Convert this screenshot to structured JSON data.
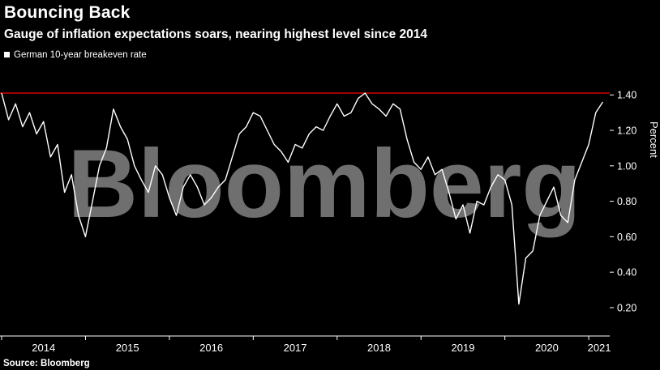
{
  "header": {
    "title": "Bouncing Back",
    "subtitle": "Gauge of inflation expectations soars, nearing highest level since 2014"
  },
  "legend": {
    "label": "German 10-year breakeven rate",
    "marker_color": "#ffffff"
  },
  "watermark": "Bloomberg",
  "source": "Source: Bloomberg",
  "colors": {
    "background": "#000000",
    "line": "#ffffff",
    "reference_line": "#ff0000",
    "watermark": "#6f6f6f",
    "axis": "#ffffff",
    "text": "#ffffff"
  },
  "chart_data": {
    "type": "line",
    "title": "Bouncing Back",
    "ylabel": "Percent",
    "xlabel": "",
    "grid": false,
    "legend_position": "top-left",
    "xlim": [
      2014.0,
      2021.25
    ],
    "ylim": [
      0.04,
      1.57
    ],
    "y_ticks": [
      0.2,
      0.4,
      0.6,
      0.8,
      1.0,
      1.2,
      1.4
    ],
    "x_tick_years": [
      2014,
      2015,
      2016,
      2017,
      2018,
      2019,
      2020,
      2021
    ],
    "reference_line": {
      "value": 1.41
    },
    "series": [
      {
        "name": "German 10-year breakeven rate",
        "x_start": 2014.0,
        "x_step_years": 0.083333,
        "values": [
          1.41,
          1.26,
          1.35,
          1.22,
          1.3,
          1.18,
          1.25,
          1.05,
          1.12,
          0.85,
          0.95,
          0.72,
          0.6,
          0.8,
          1.0,
          1.1,
          1.32,
          1.22,
          1.15,
          1.0,
          0.92,
          0.85,
          1.0,
          0.95,
          0.82,
          0.72,
          0.88,
          0.95,
          0.88,
          0.78,
          0.82,
          0.88,
          0.92,
          1.05,
          1.18,
          1.22,
          1.3,
          1.28,
          1.2,
          1.12,
          1.08,
          1.02,
          1.12,
          1.1,
          1.18,
          1.22,
          1.2,
          1.28,
          1.35,
          1.28,
          1.3,
          1.38,
          1.41,
          1.35,
          1.32,
          1.28,
          1.35,
          1.32,
          1.15,
          1.02,
          0.98,
          1.05,
          0.95,
          0.98,
          0.85,
          0.7,
          0.78,
          0.62,
          0.8,
          0.78,
          0.88,
          0.95,
          0.92,
          0.78,
          0.22,
          0.48,
          0.52,
          0.72,
          0.8,
          0.88,
          0.72,
          0.68,
          0.92,
          1.02,
          1.12,
          1.3,
          1.36
        ]
      }
    ]
  }
}
